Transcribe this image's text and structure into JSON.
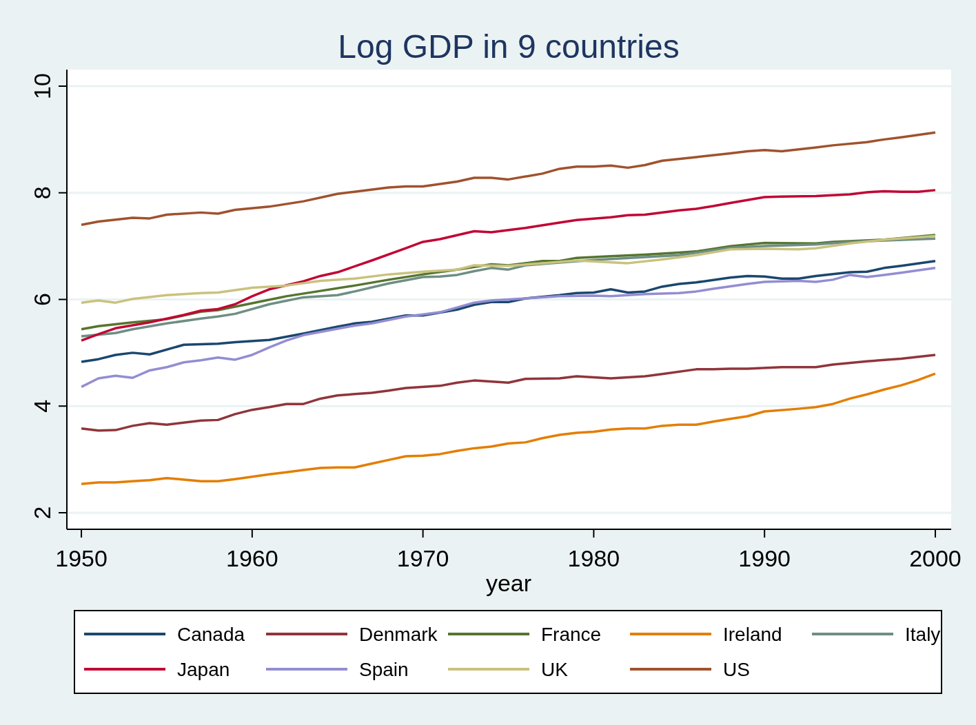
{
  "chart_data": {
    "type": "line",
    "title": "Log GDP in 9 countries",
    "xlabel": "year",
    "xlim": [
      1949.15,
      2000.93
    ],
    "xticks": [
      1950,
      1960,
      1970,
      1980,
      1990,
      2000
    ],
    "ylim": [
      1.69,
      10.31
    ],
    "yticks": [
      2,
      4,
      6,
      8,
      10
    ],
    "grid": "y",
    "legend": "bottom",
    "line_style": "solid",
    "marker": "none",
    "series": [
      {
        "name": "Canada",
        "color": "#1a476f",
        "x": [
          1950,
          1951,
          1952,
          1953,
          1954,
          1956,
          1958,
          1959,
          1961,
          1963,
          1965,
          1966,
          1967,
          1969,
          1970,
          1972,
          1973,
          1974,
          1975,
          1976,
          1978,
          1979,
          1980,
          1981,
          1982,
          1983,
          1984,
          1985,
          1986,
          1988,
          1989,
          1990,
          1991,
          1992,
          1993,
          1995,
          1996,
          1997,
          1998,
          2000
        ],
        "values": [
          4.83,
          4.88,
          4.96,
          5.0,
          4.97,
          5.15,
          5.17,
          5.2,
          5.24,
          5.36,
          5.49,
          5.55,
          5.58,
          5.7,
          5.7,
          5.81,
          5.9,
          5.95,
          5.95,
          6.02,
          6.08,
          6.12,
          6.13,
          6.19,
          6.13,
          6.15,
          6.24,
          6.29,
          6.32,
          6.41,
          6.44,
          6.43,
          6.39,
          6.39,
          6.44,
          6.51,
          6.52,
          6.59,
          6.63,
          6.72
        ]
      },
      {
        "name": "Denmark",
        "color": "#90353b",
        "x": [
          1950,
          1951,
          1952,
          1953,
          1954,
          1955,
          1957,
          1958,
          1959,
          1960,
          1961,
          1962,
          1963,
          1964,
          1965,
          1967,
          1968,
          1969,
          1971,
          1972,
          1973,
          1975,
          1976,
          1978,
          1979,
          1981,
          1983,
          1984,
          1986,
          1987,
          1988,
          1989,
          1991,
          1993,
          1994,
          1996,
          1998,
          2000
        ],
        "values": [
          3.58,
          3.54,
          3.55,
          3.63,
          3.68,
          3.65,
          3.73,
          3.74,
          3.85,
          3.93,
          3.98,
          4.04,
          4.04,
          4.14,
          4.2,
          4.25,
          4.29,
          4.34,
          4.38,
          4.44,
          4.48,
          4.44,
          4.51,
          4.52,
          4.56,
          4.52,
          4.56,
          4.6,
          4.69,
          4.69,
          4.7,
          4.7,
          4.73,
          4.73,
          4.78,
          4.84,
          4.89,
          4.96
        ]
      },
      {
        "name": "France",
        "color": "#55752f",
        "x": [
          1950,
          1951,
          1953,
          1955,
          1957,
          1958,
          1960,
          1962,
          1964,
          1966,
          1968,
          1970,
          1972,
          1974,
          1975,
          1977,
          1978,
          1979,
          1981,
          1983,
          1985,
          1986,
          1988,
          1990,
          1993,
          1994,
          1997,
          2000
        ],
        "values": [
          5.44,
          5.5,
          5.57,
          5.63,
          5.77,
          5.8,
          5.93,
          6.06,
          6.16,
          6.26,
          6.37,
          6.47,
          6.56,
          6.66,
          6.64,
          6.72,
          6.72,
          6.78,
          6.81,
          6.84,
          6.88,
          6.9,
          7.0,
          7.06,
          7.05,
          7.08,
          7.12,
          7.21
        ]
      },
      {
        "name": "Ireland",
        "color": "#e37e00",
        "x": [
          1950,
          1951,
          1952,
          1953,
          1954,
          1955,
          1957,
          1958,
          1959,
          1961,
          1962,
          1963,
          1964,
          1965,
          1966,
          1967,
          1968,
          1969,
          1970,
          1971,
          1972,
          1973,
          1974,
          1975,
          1976,
          1977,
          1978,
          1979,
          1980,
          1981,
          1982,
          1983,
          1984,
          1985,
          1986,
          1987,
          1988,
          1989,
          1990,
          1992,
          1993,
          1994,
          1995,
          1996,
          1997,
          1998,
          1999,
          2000
        ],
        "values": [
          2.54,
          2.57,
          2.57,
          2.59,
          2.61,
          2.65,
          2.59,
          2.59,
          2.63,
          2.72,
          2.76,
          2.8,
          2.84,
          2.85,
          2.85,
          2.92,
          2.99,
          3.06,
          3.07,
          3.1,
          3.16,
          3.21,
          3.24,
          3.3,
          3.32,
          3.4,
          3.46,
          3.5,
          3.52,
          3.56,
          3.58,
          3.58,
          3.63,
          3.65,
          3.65,
          3.71,
          3.76,
          3.81,
          3.9,
          3.95,
          3.98,
          4.04,
          4.14,
          4.22,
          4.31,
          4.39,
          4.49,
          4.61
        ]
      },
      {
        "name": "Italy",
        "color": "#6e8e84",
        "x": [
          1950,
          1952,
          1953,
          1955,
          1957,
          1958,
          1959,
          1961,
          1963,
          1965,
          1966,
          1968,
          1970,
          1971,
          1972,
          1973,
          1974,
          1975,
          1976,
          1978,
          1980,
          1985,
          1988,
          1990,
          1993,
          1995,
          2000
        ],
        "values": [
          5.31,
          5.37,
          5.44,
          5.55,
          5.64,
          5.68,
          5.73,
          5.91,
          6.04,
          6.08,
          6.15,
          6.3,
          6.42,
          6.43,
          6.46,
          6.53,
          6.59,
          6.56,
          6.64,
          6.69,
          6.74,
          6.83,
          6.97,
          7.0,
          7.03,
          7.08,
          7.14
        ]
      },
      {
        "name": "Japan",
        "color": "#c10534",
        "x": [
          1950,
          1951,
          1952,
          1954,
          1956,
          1957,
          1958,
          1959,
          1960,
          1961,
          1963,
          1964,
          1965,
          1967,
          1969,
          1970,
          1971,
          1973,
          1974,
          1976,
          1978,
          1979,
          1981,
          1982,
          1983,
          1985,
          1986,
          1987,
          1988,
          1990,
          1991,
          1993,
          1995,
          1996,
          1997,
          1998,
          1999,
          2000
        ],
        "values": [
          5.23,
          5.35,
          5.46,
          5.57,
          5.71,
          5.79,
          5.82,
          5.91,
          6.06,
          6.19,
          6.34,
          6.44,
          6.51,
          6.73,
          6.96,
          7.08,
          7.13,
          7.28,
          7.26,
          7.34,
          7.44,
          7.49,
          7.54,
          7.58,
          7.59,
          7.67,
          7.7,
          7.75,
          7.81,
          7.92,
          7.93,
          7.94,
          7.97,
          8.01,
          8.03,
          8.02,
          8.02,
          8.05
        ]
      },
      {
        "name": "Spain",
        "color": "#938dd2",
        "x": [
          1950,
          1951,
          1952,
          1953,
          1954,
          1955,
          1956,
          1957,
          1958,
          1959,
          1960,
          1961,
          1962,
          1963,
          1965,
          1966,
          1967,
          1969,
          1970,
          1971,
          1973,
          1974,
          1976,
          1978,
          1980,
          1981,
          1983,
          1985,
          1986,
          1987,
          1989,
          1990,
          1992,
          1993,
          1994,
          1995,
          1996,
          1997,
          1998,
          2000
        ],
        "values": [
          4.36,
          4.52,
          4.57,
          4.53,
          4.67,
          4.73,
          4.82,
          4.86,
          4.91,
          4.87,
          4.96,
          5.1,
          5.23,
          5.33,
          5.45,
          5.51,
          5.55,
          5.68,
          5.72,
          5.76,
          5.94,
          5.98,
          6.02,
          6.06,
          6.07,
          6.06,
          6.1,
          6.12,
          6.15,
          6.2,
          6.29,
          6.33,
          6.35,
          6.33,
          6.37,
          6.46,
          6.42,
          6.46,
          6.5,
          6.59
        ]
      },
      {
        "name": "UK",
        "color": "#cac27e",
        "x": [
          1950,
          1951,
          1952,
          1953,
          1955,
          1957,
          1958,
          1960,
          1962,
          1964,
          1966,
          1968,
          1970,
          1972,
          1973,
          1975,
          1977,
          1979,
          1982,
          1984,
          1986,
          1988,
          1990,
          1992,
          1993,
          1995,
          1997,
          2000
        ],
        "values": [
          5.94,
          5.98,
          5.94,
          6.01,
          6.08,
          6.12,
          6.13,
          6.22,
          6.26,
          6.35,
          6.39,
          6.47,
          6.52,
          6.56,
          6.64,
          6.63,
          6.68,
          6.73,
          6.68,
          6.75,
          6.83,
          6.94,
          6.95,
          6.94,
          6.96,
          7.05,
          7.12,
          7.19
        ]
      },
      {
        "name": "US",
        "color": "#a0522d",
        "x": [
          1950,
          1951,
          1953,
          1954,
          1955,
          1957,
          1958,
          1959,
          1961,
          1963,
          1965,
          1966,
          1968,
          1969,
          1970,
          1972,
          1973,
          1974,
          1975,
          1977,
          1978,
          1979,
          1980,
          1981,
          1982,
          1983,
          1984,
          1986,
          1988,
          1989,
          1990,
          1991,
          1993,
          1994,
          1996,
          1997,
          1998,
          2000
        ],
        "values": [
          7.4,
          7.46,
          7.53,
          7.52,
          7.59,
          7.63,
          7.61,
          7.68,
          7.74,
          7.84,
          7.98,
          8.02,
          8.1,
          8.12,
          8.12,
          8.21,
          8.28,
          8.28,
          8.25,
          8.36,
          8.45,
          8.49,
          8.49,
          8.51,
          8.47,
          8.52,
          8.6,
          8.67,
          8.74,
          8.78,
          8.8,
          8.78,
          8.85,
          8.89,
          8.95,
          9.0,
          9.04,
          9.13
        ]
      }
    ]
  }
}
